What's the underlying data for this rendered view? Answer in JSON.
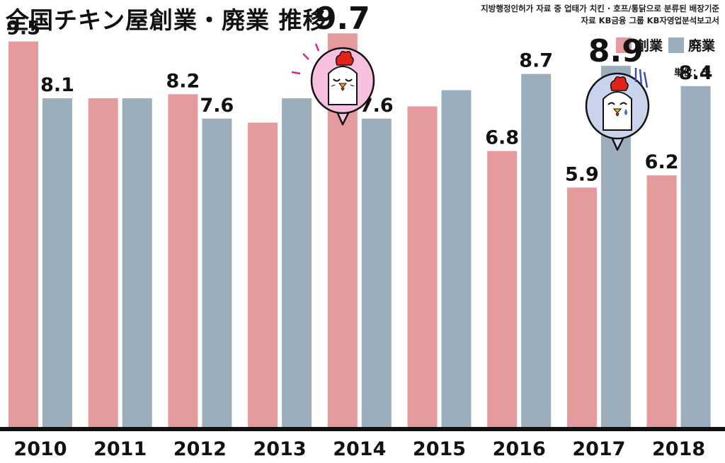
{
  "title": "全国チキン屋創業・廃業 推移",
  "source_lines": [
    "지방행정인허가 자료 중 업태가 치킨 · 호프/통닭으로 분류된 배장기준",
    "자료 KB금융 그룹 KB자영업분석보고서"
  ],
  "unit_label": "単位：千",
  "colors": {
    "open": "#e59a9e",
    "close": "#9caebb",
    "baseline": "#111111"
  },
  "chart_data": {
    "type": "bar",
    "title": "全国チキン屋創業・廃業 推移",
    "categories": [
      "2010",
      "2011",
      "2012",
      "2013",
      "2014",
      "2015",
      "2016",
      "2017",
      "2018"
    ],
    "series": [
      {
        "name": "創業",
        "values": [
          9.5,
          8.1,
          8.2,
          7.5,
          9.7,
          7.9,
          6.8,
          5.9,
          6.2
        ],
        "labels": [
          "9.5",
          "",
          "8.2",
          "",
          "9.7",
          "",
          "6.8",
          "5.9",
          "6.2"
        ]
      },
      {
        "name": "廃業",
        "values": [
          8.1,
          8.1,
          7.6,
          8.1,
          7.6,
          8.3,
          8.7,
          8.9,
          8.4
        ],
        "labels": [
          "8.1",
          "",
          "7.6",
          "",
          "7.6",
          "",
          "8.7",
          "8.9",
          "8.4"
        ]
      }
    ],
    "highlight_labels": [
      "9.7",
      "8.9"
    ],
    "ylim": [
      0,
      10
    ],
    "legend_position": "top-right",
    "grid": false,
    "annotations": [
      {
        "type": "icon",
        "name": "happy-chicken-icon",
        "near": "2014"
      },
      {
        "type": "icon",
        "name": "sad-chicken-icon",
        "near": "2017"
      }
    ]
  }
}
